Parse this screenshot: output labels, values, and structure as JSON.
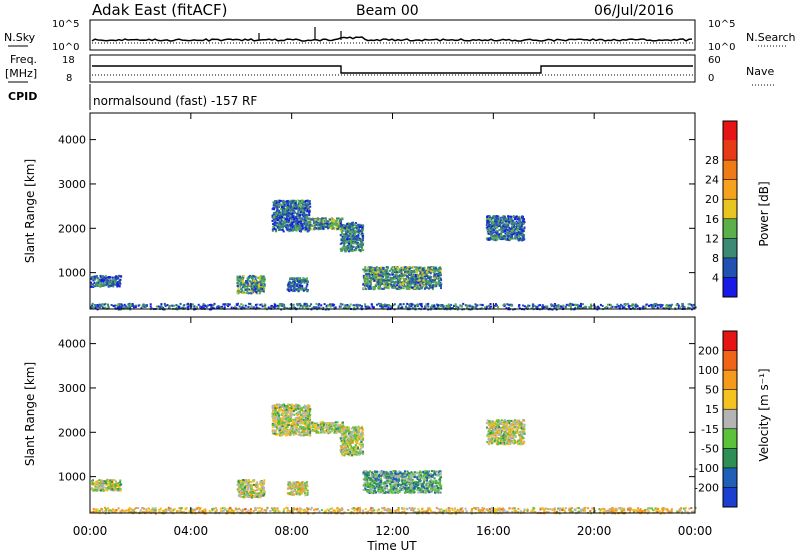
{
  "header": {
    "radar": "Adak East (fitACF)",
    "beam": "Beam 00",
    "date": "06/Jul/2016"
  },
  "top_panels": {
    "noise": {
      "left_label": "N.Sky",
      "right_label": "N.Search",
      "left_ticks": [
        "10^5",
        "10^0"
      ],
      "right_ticks": [
        "10^5",
        "10^0"
      ]
    },
    "freq": {
      "left_label_line1": "Freq.",
      "left_label_line2": "[MHz]",
      "right_label": "Nave",
      "left_ticks": [
        "18",
        "8"
      ],
      "right_ticks": [
        "60",
        "0"
      ]
    },
    "cpid": {
      "label": "CPID",
      "text": "normalsound (fast) -157 RF"
    }
  },
  "chart_data": [
    {
      "type": "heatmap",
      "title": "",
      "ylabel": "Slant Range [km]",
      "xlabel": "",
      "x_ticks": [
        "00:00",
        "04:00",
        "08:00",
        "12:00",
        "16:00",
        "20:00",
        "00:00"
      ],
      "y_ticks": [
        1000,
        2000,
        3000,
        4000
      ],
      "ylim": [
        180,
        4600
      ],
      "xlim_hours": [
        0,
        24
      ],
      "colorbar": {
        "label": "Power [dB]",
        "ticks": [
          "4",
          "8",
          "12",
          "16",
          "20",
          "24",
          "28"
        ],
        "colors": [
          "#1a1ae6",
          "#2152b3",
          "#3c8a74",
          "#5bb04a",
          "#e8c520",
          "#f5a21c",
          "#f07a16",
          "#e83a14",
          "#e61414"
        ]
      },
      "regions": [
        {
          "h": [
            0.0,
            1.2
          ],
          "km": [
            700,
            950
          ],
          "level": 0.2
        },
        {
          "h": [
            5.8,
            6.9
          ],
          "km": [
            550,
            950
          ],
          "level": 0.3
        },
        {
          "h": [
            7.2,
            8.7
          ],
          "km": [
            1950,
            2650
          ],
          "level": 0.2
        },
        {
          "h": [
            8.6,
            10.0
          ],
          "km": [
            2000,
            2250
          ],
          "level": 0.3
        },
        {
          "h": [
            7.8,
            8.6
          ],
          "km": [
            600,
            900
          ],
          "level": 0.2
        },
        {
          "h": [
            9.9,
            10.8
          ],
          "km": [
            1500,
            2150
          ],
          "level": 0.25
        },
        {
          "h": [
            10.8,
            13.9
          ],
          "km": [
            650,
            1150
          ],
          "level": 0.3
        },
        {
          "h": [
            15.7,
            17.2
          ],
          "km": [
            1750,
            2300
          ],
          "level": 0.2
        },
        {
          "h": [
            0.0,
            24.0
          ],
          "km": [
            190,
            320
          ],
          "level": 0.2
        }
      ]
    },
    {
      "type": "heatmap",
      "title": "",
      "ylabel": "Slant Range [km]",
      "xlabel": "Time UT",
      "x_ticks": [
        "00:00",
        "04:00",
        "08:00",
        "12:00",
        "16:00",
        "20:00",
        "00:00"
      ],
      "y_ticks": [
        1000,
        2000,
        3000,
        4000
      ],
      "ylim": [
        180,
        4600
      ],
      "xlim_hours": [
        0,
        24
      ],
      "colorbar": {
        "label": "Velocity [m s⁻¹]",
        "ticks": [
          "200",
          "100",
          "50",
          "15",
          "-15",
          "-50",
          "-100",
          "-200"
        ],
        "colors": [
          "#1a3fd1",
          "#1f5fb8",
          "#2e8f55",
          "#5cc23a",
          "#b4b4b4",
          "#f4c31f",
          "#f59a1b",
          "#ef6417",
          "#e61414"
        ]
      },
      "regions": [
        {
          "h": [
            0.0,
            1.2
          ],
          "km": [
            700,
            950
          ],
          "level": 0.5
        },
        {
          "h": [
            5.8,
            6.9
          ],
          "km": [
            550,
            950
          ],
          "level": 0.5
        },
        {
          "h": [
            7.2,
            8.7
          ],
          "km": [
            1950,
            2650
          ],
          "level": 0.5
        },
        {
          "h": [
            8.6,
            10.0
          ],
          "km": [
            2000,
            2250
          ],
          "level": 0.45
        },
        {
          "h": [
            7.8,
            8.6
          ],
          "km": [
            600,
            900
          ],
          "level": 0.55
        },
        {
          "h": [
            9.9,
            10.8
          ],
          "km": [
            1500,
            2150
          ],
          "level": 0.5
        },
        {
          "h": [
            10.8,
            13.9
          ],
          "km": [
            650,
            1150
          ],
          "level": 0.35
        },
        {
          "h": [
            15.7,
            17.2
          ],
          "km": [
            1750,
            2300
          ],
          "level": 0.5
        },
        {
          "h": [
            0.0,
            24.0
          ],
          "km": [
            190,
            320
          ],
          "level": 0.6
        }
      ]
    }
  ]
}
